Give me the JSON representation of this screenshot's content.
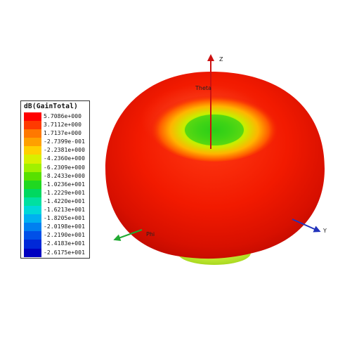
{
  "legend": {
    "title": "dB(GainTotal)",
    "entries": [
      {
        "value": "5.7086e+000",
        "color": "#ff0000"
      },
      {
        "value": "3.7112e+000",
        "color": "#ff3a00"
      },
      {
        "value": "1.7137e+000",
        "color": "#ff7800"
      },
      {
        "value": "-2.7399e-001",
        "color": "#ffa000"
      },
      {
        "value": "-2.2381e+000",
        "color": "#ffd000"
      },
      {
        "value": "-4.2360e+000",
        "color": "#d8f000"
      },
      {
        "value": "-6.2309e+000",
        "color": "#a0f000"
      },
      {
        "value": "-8.2433e+000",
        "color": "#58e000"
      },
      {
        "value": "-1.0236e+001",
        "color": "#20d820"
      },
      {
        "value": "-1.2229e+001",
        "color": "#00d860"
      },
      {
        "value": "-1.4220e+001",
        "color": "#00e0a0"
      },
      {
        "value": "-1.6213e+001",
        "color": "#00d8d8"
      },
      {
        "value": "-1.8205e+001",
        "color": "#00b0f0"
      },
      {
        "value": "-2.0198e+001",
        "color": "#0080f0"
      },
      {
        "value": "-2.2190e+001",
        "color": "#0050e8"
      },
      {
        "value": "-2.4183e+001",
        "color": "#0028d8"
      },
      {
        "value": "-2.6175e+001",
        "color": "#0000c0"
      }
    ]
  },
  "axes": {
    "z": {
      "label": "Z",
      "color": "#cc1111"
    },
    "y": {
      "label": "Y",
      "color": "#2233bb"
    },
    "x": {
      "label": "Phi",
      "color": "#22aa33"
    },
    "theta_label": "Theta"
  },
  "pattern_colors": {
    "outer": "#ff1a00",
    "mid": "#ff8800",
    "inner": "#c8f000",
    "core": "#40d820"
  }
}
